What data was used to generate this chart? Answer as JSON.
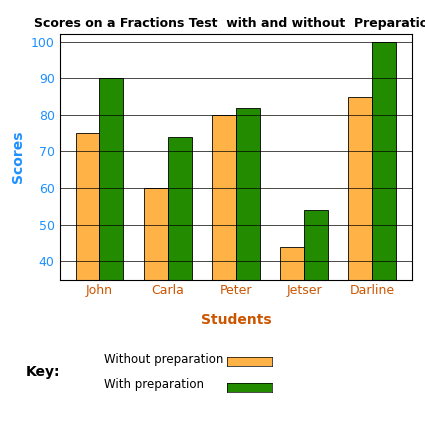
{
  "title": "Scores on a Fractions Test  with and without  Preparation",
  "students": [
    "John",
    "Carla",
    "Peter",
    "Jetser",
    "Darline"
  ],
  "without_prep": [
    75,
    60,
    80,
    44,
    85
  ],
  "with_prep": [
    90,
    74,
    82,
    54,
    100
  ],
  "color_without": "#FFB347",
  "color_with": "#228B00",
  "ylabel": "Scores",
  "xlabel": "Students",
  "ylim_min": 35,
  "ylim_max": 102,
  "yticks": [
    40,
    50,
    60,
    70,
    80,
    90,
    100
  ],
  "title_color": "#000000",
  "tick_color_y": "#1E90FF",
  "tick_color_x": "#CC5500",
  "xlabel_color": "#CC5500",
  "ylabel_color": "#1E90FF",
  "key_label": "Key:",
  "legend_without": "Without preparation",
  "legend_with": "With preparation",
  "bar_width": 0.35
}
